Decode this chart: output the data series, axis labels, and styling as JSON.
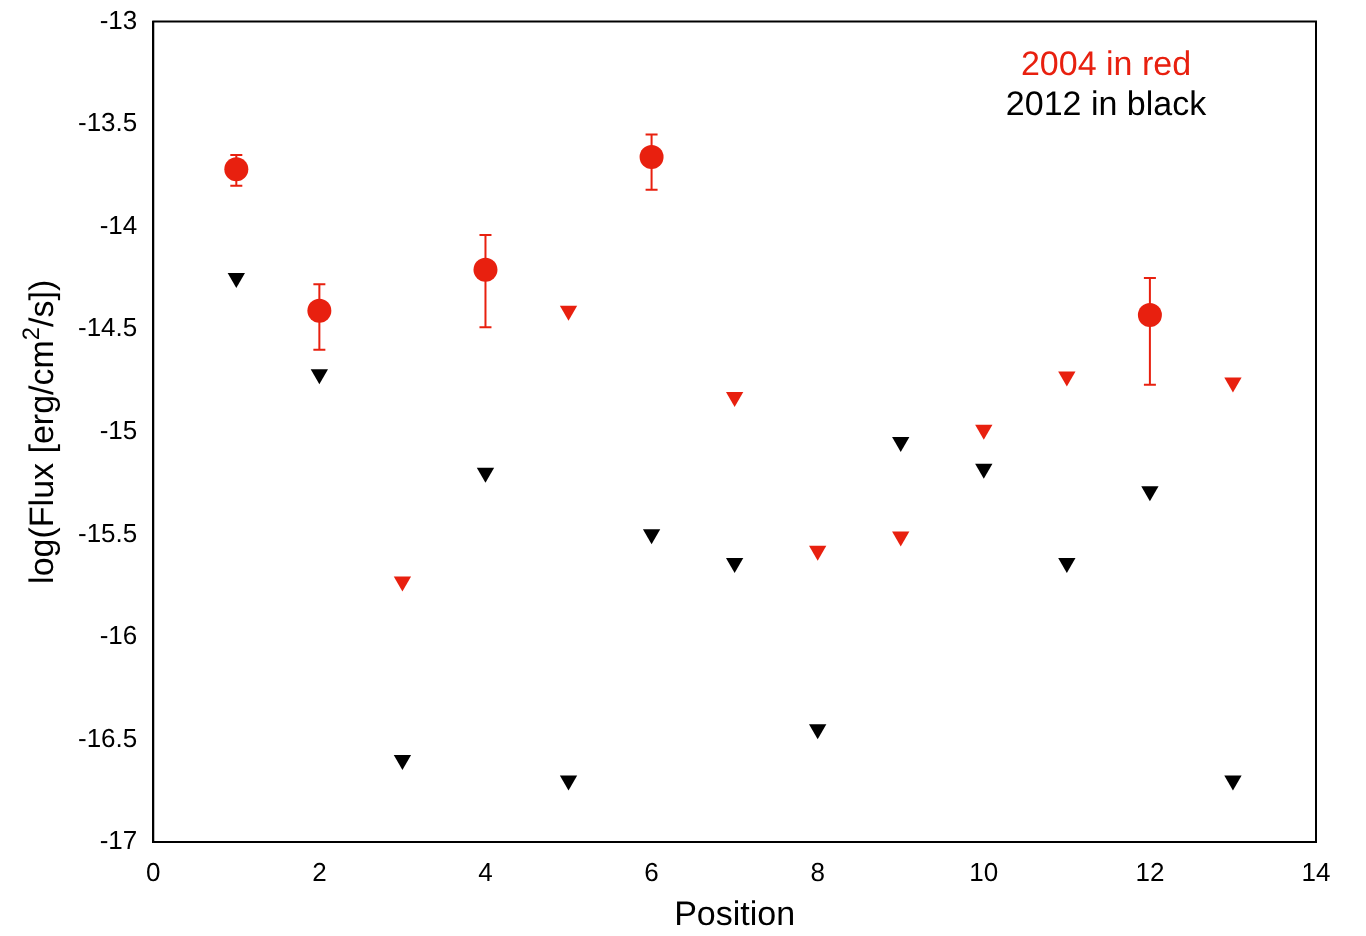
{
  "chart_data": {
    "type": "scatter",
    "xlabel": "Position",
    "ylabel": "log(Flux [erg/cm$^{2}$/s])",
    "xlim": [
      0,
      14
    ],
    "xticks": [
      0,
      2,
      4,
      6,
      8,
      10,
      12,
      14
    ],
    "ylim": [
      -17,
      -13
    ],
    "yticks": [
      -17,
      -16.5,
      -16,
      -15.5,
      -15,
      -14.5,
      -14,
      -13.5,
      -13
    ],
    "grid": false,
    "legend": "top right",
    "series": [
      {
        "name": "2004 in red",
        "color": "#e8200f",
        "marker": "circle",
        "x": [
          1,
          2,
          4,
          6,
          12
        ],
        "values": [
          -13.72,
          -14.41,
          -14.21,
          -13.66,
          -14.43
        ],
        "errors": [
          [
            -13.8,
            -13.65
          ],
          [
            -14.6,
            -14.28
          ],
          [
            -14.49,
            -14.04
          ],
          [
            -13.82,
            -13.55
          ],
          [
            -14.77,
            -14.25
          ]
        ]
      },
      {
        "color": "#e8200f",
        "marker": "triangle",
        "x": [
          3,
          5,
          7,
          8,
          9,
          10,
          11,
          13
        ],
        "values": [
          -15.73,
          -14.41,
          -14.83,
          -15.58,
          -15.51,
          -14.99,
          -14.73,
          -14.76
        ]
      },
      {
        "name": "2012 in black",
        "color": "#000000",
        "marker": "triangle",
        "x": [
          1,
          2,
          3,
          4,
          5,
          6,
          7,
          8,
          9,
          10,
          11,
          12,
          13
        ],
        "values": [
          -14.25,
          -14.72,
          -16.6,
          -15.2,
          -16.7,
          -15.5,
          -15.64,
          -16.45,
          -15.05,
          -15.18,
          -15.64,
          -15.29,
          -16.7
        ]
      }
    ]
  }
}
